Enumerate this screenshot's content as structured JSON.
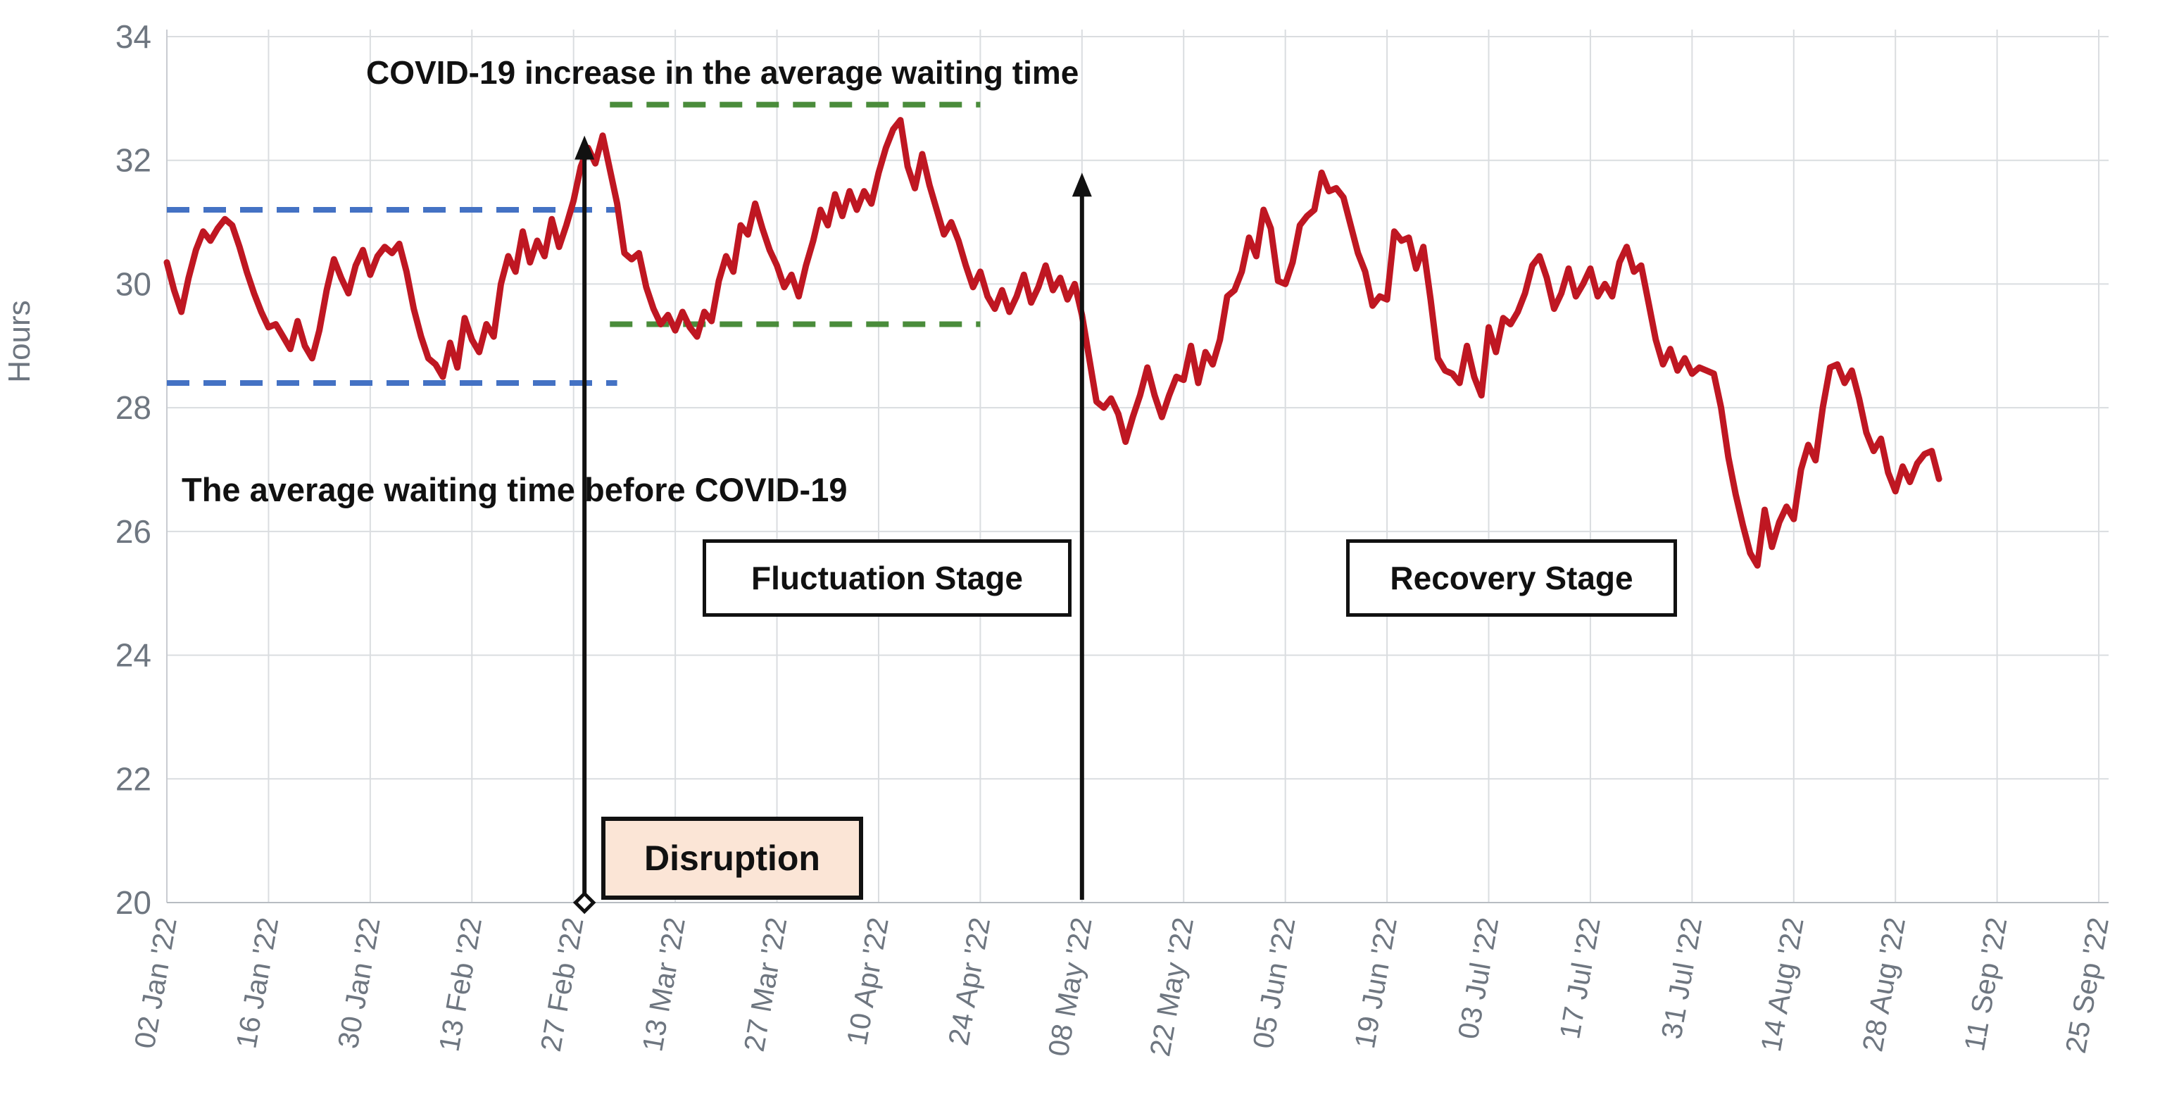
{
  "chart_data": {
    "type": "line",
    "ylabel": "Hours",
    "ylim": [
      20,
      34
    ],
    "y_ticks": [
      34,
      32,
      30,
      28,
      26,
      24,
      22,
      20
    ],
    "x_tick_labels": [
      "02 Jan '22",
      "16 Jan '22",
      "30 Jan '22",
      "13 Feb '22",
      "27 Feb '22",
      "13 Mar '22",
      "27 Mar '22",
      "10 Apr '22",
      "24 Apr '22",
      "08 May '22",
      "22 May '22",
      "05 Jun '22",
      "19 Jun '22",
      "03 Jul '22",
      "17 Jul '22",
      "31 Jul '22",
      "14 Aug '22",
      "28 Aug '22",
      "11 Sep '22",
      "25 Sep '22"
    ],
    "x_tick_interval_days": 14,
    "grid": true,
    "legend": "none",
    "series": [
      {
        "name": "average-waiting-time",
        "color": "#bf1722",
        "start_date_label": "02 Jan '22",
        "values": [
          30.35,
          29.9,
          29.55,
          30.1,
          30.55,
          30.85,
          30.7,
          30.9,
          31.05,
          30.95,
          30.6,
          30.2,
          29.85,
          29.55,
          29.3,
          29.35,
          29.15,
          28.95,
          29.4,
          29.0,
          28.8,
          29.25,
          29.9,
          30.4,
          30.1,
          29.85,
          30.3,
          30.55,
          30.15,
          30.45,
          30.6,
          30.5,
          30.65,
          30.2,
          29.6,
          29.15,
          28.8,
          28.7,
          28.5,
          29.05,
          28.65,
          29.45,
          29.1,
          28.9,
          29.35,
          29.15,
          30.0,
          30.45,
          30.2,
          30.85,
          30.35,
          30.7,
          30.45,
          31.05,
          30.6,
          30.95,
          31.35,
          31.9,
          32.2,
          31.95,
          32.4,
          31.85,
          31.3,
          30.5,
          30.4,
          30.5,
          29.95,
          29.6,
          29.35,
          29.5,
          29.25,
          29.55,
          29.3,
          29.15,
          29.55,
          29.4,
          30.05,
          30.45,
          30.2,
          30.95,
          30.8,
          31.3,
          30.9,
          30.55,
          30.3,
          29.95,
          30.15,
          29.8,
          30.3,
          30.7,
          31.2,
          30.95,
          31.45,
          31.1,
          31.5,
          31.2,
          31.5,
          31.3,
          31.8,
          32.2,
          32.5,
          32.65,
          31.9,
          31.55,
          32.1,
          31.6,
          31.2,
          30.8,
          31.0,
          30.7,
          30.3,
          29.95,
          30.2,
          29.8,
          29.6,
          29.9,
          29.55,
          29.8,
          30.15,
          29.7,
          29.95,
          30.3,
          29.9,
          30.1,
          29.75,
          30.0,
          29.5,
          28.8,
          28.1,
          28.0,
          28.15,
          27.9,
          27.45,
          27.85,
          28.2,
          28.65,
          28.2,
          27.85,
          28.2,
          28.5,
          28.45,
          29.0,
          28.4,
          28.9,
          28.7,
          29.1,
          29.8,
          29.9,
          30.2,
          30.75,
          30.45,
          31.2,
          30.9,
          30.05,
          30.0,
          30.35,
          30.95,
          31.1,
          31.2,
          31.8,
          31.5,
          31.55,
          31.4,
          30.95,
          30.5,
          30.2,
          29.65,
          29.8,
          29.75,
          30.85,
          30.7,
          30.75,
          30.25,
          30.6,
          29.75,
          28.8,
          28.6,
          28.55,
          28.4,
          29.0,
          28.5,
          28.2,
          29.3,
          28.9,
          29.45,
          29.35,
          29.55,
          29.85,
          30.3,
          30.45,
          30.1,
          29.6,
          29.85,
          30.25,
          29.8,
          30.0,
          30.25,
          29.8,
          30.0,
          29.8,
          30.35,
          30.6,
          30.2,
          30.3,
          29.7,
          29.1,
          28.7,
          28.95,
          28.6,
          28.8,
          28.55,
          28.65,
          28.6,
          28.55,
          28.0,
          27.2,
          26.6,
          26.1,
          25.65,
          25.45,
          26.35,
          25.75,
          26.15,
          26.4,
          26.2,
          27.0,
          27.4,
          27.15,
          28.0,
          28.65,
          28.7,
          28.4,
          28.6,
          28.15,
          27.6,
          27.3,
          27.5,
          26.95,
          26.65,
          27.05,
          26.8,
          27.1,
          27.25,
          27.3,
          26.85
        ]
      }
    ],
    "reference_lines": [
      {
        "name": "pre-covid-upper",
        "value": 31.2,
        "start_day": 0,
        "end_day": 62,
        "color": "#4472c4",
        "style": "dashed"
      },
      {
        "name": "pre-covid-lower",
        "value": 28.4,
        "start_day": 0,
        "end_day": 62,
        "color": "#4472c4",
        "style": "dashed"
      },
      {
        "name": "fluctuation-upper",
        "value": 32.9,
        "start_day": 61,
        "end_day": 112,
        "color": "#4a8c3b",
        "style": "dashed"
      },
      {
        "name": "fluctuation-lower",
        "value": 29.35,
        "start_day": 61,
        "end_day": 112,
        "color": "#4a8c3b",
        "style": "dashed"
      }
    ],
    "event_arrows": [
      {
        "name": "disruption-arrow",
        "day": 57.5,
        "from_value": 20,
        "to_value": 32.4,
        "base_marker": "diamond"
      },
      {
        "name": "recovery-arrow",
        "day": 126,
        "from_value": 20,
        "to_value": 31.8,
        "base_marker": "none"
      }
    ],
    "colors": {
      "line": "#bf1722",
      "blue_dash": "#4472c4",
      "green_dash": "#4a8c3b",
      "gridline": "#dadde0",
      "axis": "#c9ccd1",
      "tick_label": "#6e7680",
      "arrow": "#111111"
    }
  },
  "annotations": {
    "covid_title": "COVID-19 increase in the average waiting time",
    "precovid_label": "The average waiting time before COVID-19",
    "fluctuation_stage": "Fluctuation Stage",
    "recovery_stage": "Recovery Stage",
    "disruption": "Disruption",
    "y_axis_title": "Hours"
  }
}
